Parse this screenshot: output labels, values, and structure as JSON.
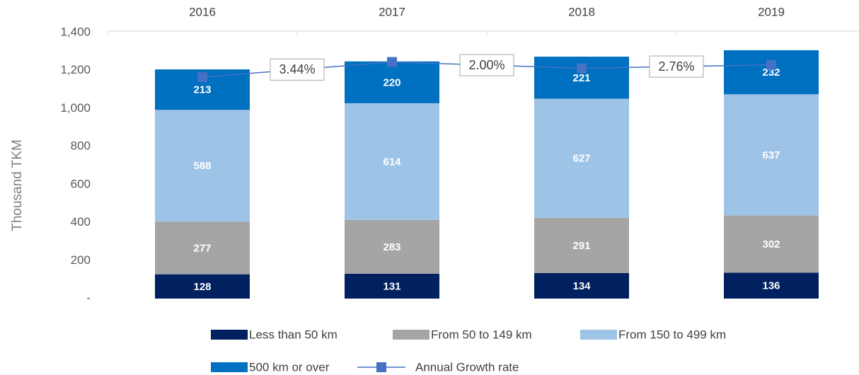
{
  "chart_data": {
    "type": "bar",
    "y_label": "Thousand TKM",
    "categories": [
      "2016",
      "2017",
      "2018",
      "2019"
    ],
    "series": [
      {
        "name": "Less than 50 km",
        "color": "#002060",
        "values": [
          128,
          131,
          134,
          136
        ]
      },
      {
        "name": "From 50 to 149 km",
        "color": "#a5a5a5",
        "values": [
          277,
          283,
          291,
          302
        ]
      },
      {
        "name": "From 150 to 499 km",
        "color": "#9dc3e6",
        "values": [
          588,
          614,
          627,
          637
        ]
      },
      {
        "name": "500 km or over",
        "color": "#0070c0",
        "values": [
          213,
          220,
          221,
          232
        ]
      },
      {
        "name": "Annual Growth rate",
        "type": "line",
        "color": "#4472c4",
        "values": [
          1165,
          1245,
          1212,
          1230
        ]
      }
    ],
    "annotations": [
      "3.44%",
      "2.00%",
      "2.76%"
    ],
    "ylim": [
      0,
      1400
    ],
    "yticks": [
      {
        "value": 0,
        "label": "-"
      },
      200,
      400,
      600,
      800,
      {
        "value": 1000,
        "label": "1,000"
      },
      {
        "value": 1200,
        "label": "1,200"
      },
      {
        "value": 1400,
        "label": "1,400"
      }
    ],
    "stacked": true
  }
}
